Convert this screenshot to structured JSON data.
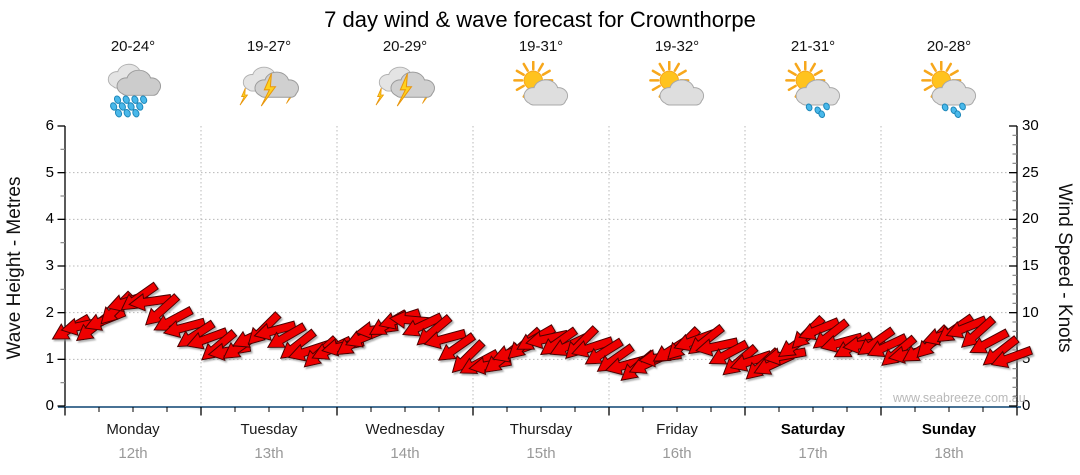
{
  "title": "7 day wind & wave forecast for Crownthorpe",
  "days": [
    {
      "name": "Monday",
      "date": "12th",
      "temp": "20-24°",
      "icon": "rain",
      "bold": false
    },
    {
      "name": "Tuesday",
      "date": "13th",
      "temp": "19-27°",
      "icon": "storm",
      "bold": false
    },
    {
      "name": "Wednesday",
      "date": "14th",
      "temp": "20-29°",
      "icon": "storm",
      "bold": false
    },
    {
      "name": "Thursday",
      "date": "15th",
      "temp": "19-31°",
      "icon": "partly-sunny",
      "bold": false
    },
    {
      "name": "Friday",
      "date": "16th",
      "temp": "19-32°",
      "icon": "partly-sunny",
      "bold": false
    },
    {
      "name": "Saturday",
      "date": "17th",
      "temp": "21-31°",
      "icon": "sun-shower",
      "bold": true
    },
    {
      "name": "Sunday",
      "date": "18th",
      "temp": "20-28°",
      "icon": "sun-shower",
      "bold": true
    }
  ],
  "watermark": "www.seabreeze.com.au",
  "colors": {
    "arrow": "#ee0000",
    "arrow_outline": "#4d0000",
    "grid": "#b8b8b8",
    "axis": "#000000",
    "baseline": "#2e5e86",
    "minor_tick": "#888888",
    "date_text": "#999999"
  },
  "chart_data": {
    "type": "scatter",
    "marker": "wind-arrow",
    "title": "7 day wind & wave forecast for Crownthorpe",
    "x_categories": [
      "Monday 12th",
      "Tuesday 13th",
      "Wednesday 14th",
      "Thursday 15th",
      "Friday 16th",
      "Saturday 17th",
      "Sunday 18th"
    ],
    "points_per_day": 12,
    "y_left": {
      "label": "Wave Height - Metres",
      "range": [
        0,
        6
      ],
      "ticks": [
        0,
        1,
        2,
        3,
        4,
        5,
        6
      ]
    },
    "y_right": {
      "label": "Wind Speed - Knots",
      "range": [
        0,
        30
      ],
      "ticks": [
        0,
        5,
        10,
        15,
        20,
        25,
        30
      ]
    },
    "grid": "dotted horizontal each metre (1-5), dotted vertical at day boundaries",
    "legend": "none",
    "series": [
      {
        "name": "Wind speed (knots)",
        "values": [
          8.3,
          8.6,
          8.4,
          9.2,
          10.4,
          11.2,
          11.6,
          11.2,
          10.2,
          9.2,
          8.4,
          7.6,
          7.2,
          6.4,
          5.9,
          6.4,
          7.4,
          8.2,
          8.1,
          7.4,
          6.5,
          5.9,
          5.7,
          6.1,
          6.4,
          6.8,
          7.4,
          8.2,
          8.8,
          9.3,
          9.2,
          8.6,
          8.0,
          7.2,
          6.2,
          5.2,
          4.6,
          4.4,
          5.0,
          5.8,
          6.6,
          7.2,
          7.2,
          6.8,
          6.5,
          6.7,
          6.3,
          5.7,
          5.0,
          4.4,
          4.2,
          4.6,
          5.2,
          6.0,
          6.6,
          7.0,
          7.0,
          6.4,
          5.6,
          4.8,
          4.8,
          4.4,
          4.5,
          5.4,
          6.6,
          7.8,
          8.2,
          7.6,
          6.8,
          6.4,
          6.6,
          6.8,
          6.4,
          5.8,
          5.6,
          6.0,
          6.8,
          7.6,
          8.2,
          8.4,
          7.8,
          6.8,
          5.8,
          5.2
        ]
      },
      {
        "name": "Wind arrow tilt (deg, positive = head down-left)",
        "values": [
          30,
          12,
          38,
          22,
          45,
          18,
          35,
          8,
          42,
          28,
          15,
          33,
          20,
          40,
          10,
          35,
          25,
          45,
          15,
          30,
          38,
          18,
          42,
          25,
          12,
          35,
          22,
          8,
          30,
          18,
          -5,
          25,
          40,
          15,
          35,
          45,
          28,
          10,
          38,
          20,
          42,
          30,
          12,
          35,
          25,
          45,
          18,
          32,
          35,
          15,
          40,
          25,
          8,
          32,
          45,
          20,
          38,
          12,
          28,
          40,
          18,
          42,
          25,
          10,
          35,
          45,
          22,
          38,
          15,
          30,
          8,
          35,
          25,
          40,
          12,
          32,
          45,
          18,
          35,
          22,
          42,
          28,
          38,
          20
        ]
      }
    ]
  }
}
